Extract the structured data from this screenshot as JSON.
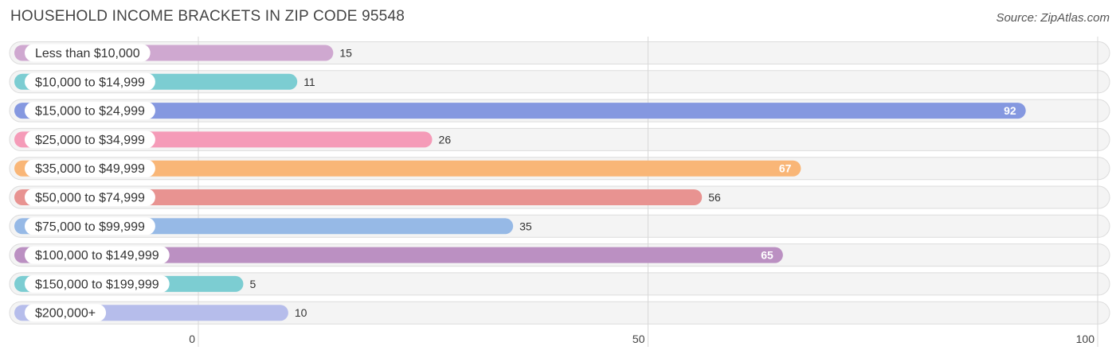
{
  "title": "HOUSEHOLD INCOME BRACKETS IN ZIP CODE 95548",
  "source": "Source: ZipAtlas.com",
  "chart_data": {
    "type": "bar",
    "orientation": "horizontal",
    "title": "HOUSEHOLD INCOME BRACKETS IN ZIP CODE 95548",
    "categories": [
      "Less than $10,000",
      "$10,000 to $14,999",
      "$15,000 to $24,999",
      "$25,000 to $34,999",
      "$35,000 to $49,999",
      "$50,000 to $74,999",
      "$75,000 to $99,999",
      "$100,000 to $149,999",
      "$150,000 to $199,999",
      "$200,000+"
    ],
    "values": [
      15,
      11,
      92,
      26,
      67,
      56,
      35,
      65,
      5,
      10
    ],
    "colors": [
      "#cfa8d0",
      "#7ccdd2",
      "#8598e0",
      "#f59bb8",
      "#f9b677",
      "#e89391",
      "#96b9e6",
      "#bb90c2",
      "#7ccdd2",
      "#b6bdeb"
    ],
    "xlim": [
      0,
      100
    ],
    "xticks": [
      0,
      50,
      100
    ],
    "grid": true,
    "legend": "none"
  }
}
